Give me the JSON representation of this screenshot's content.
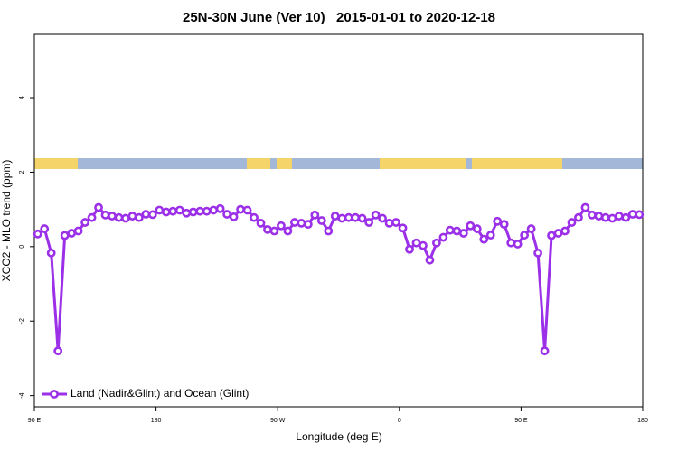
{
  "chart_data": {
    "type": "line",
    "title": "25N-30N June (Ver 10)   2015-01-01 to 2020-12-18",
    "xlabel": "Longitude (deg E)",
    "ylabel": "XCO2 - MLO trend (ppm)",
    "xlim": [
      90,
      540
    ],
    "xticks": [
      {
        "value": 90,
        "label": "90 E"
      },
      180,
      {
        "value": 270,
        "label": "90 W"
      },
      {
        "value": 360,
        "label": "0"
      },
      {
        "value": 450,
        "label": "90 E"
      },
      {
        "value": 540,
        "label": "180"
      }
    ],
    "ylim": [
      -4.3,
      5.7
    ],
    "yticks": [
      -4,
      -2,
      0,
      2,
      4
    ],
    "legend": "bottom-left",
    "x": [
      92.5,
      97.5,
      102.5,
      107.5,
      112.5,
      117.5,
      122.5,
      127.5,
      132.5,
      137.5,
      142.5,
      147.5,
      152.5,
      157.5,
      162.5,
      167.5,
      172.5,
      177.5,
      182.5,
      187.5,
      192.5,
      197.5,
      202.5,
      207.5,
      212.5,
      217.5,
      222.5,
      227.5,
      232.5,
      237.5,
      242.5,
      247.5,
      252.5,
      257.5,
      262.5,
      267.5,
      272.5,
      277.5,
      282.5,
      287.5,
      292.5,
      297.5,
      302.5,
      307.5,
      312.5,
      317.5,
      322.5,
      327.5,
      332.5,
      337.5,
      342.5,
      347.5,
      352.5,
      357.5,
      362.5,
      367.5,
      372.5,
      377.5,
      382.5,
      387.5,
      392.5,
      397.5,
      402.5,
      407.5,
      412.5,
      417.5,
      422.5,
      427.5,
      432.5,
      437.5,
      442.5,
      447.5,
      452.5,
      457.5,
      462.5,
      467.5,
      472.5,
      477.5,
      482.5,
      487.5,
      492.5,
      497.5,
      502.5,
      507.5,
      512.5,
      517.5,
      522.5,
      527.5,
      532.5,
      537.5
    ],
    "series": [
      {
        "name": "Land (Nadir&Glint) and Ocean (Glint)",
        "color": "#9b30e8",
        "values": [
          0.34,
          0.48,
          -0.17,
          -2.8,
          0.3,
          0.36,
          0.42,
          0.65,
          0.78,
          1.05,
          0.85,
          0.82,
          0.78,
          0.76,
          0.82,
          0.78,
          0.87,
          0.86,
          0.98,
          0.93,
          0.95,
          0.98,
          0.9,
          0.93,
          0.95,
          0.95,
          0.98,
          1.02,
          0.87,
          0.8,
          1.0,
          0.98,
          0.78,
          0.63,
          0.46,
          0.42,
          0.56,
          0.42,
          0.65,
          0.63,
          0.6,
          0.85,
          0.7,
          0.42,
          0.82,
          0.76,
          0.78,
          0.78,
          0.76,
          0.65,
          0.85,
          0.76,
          0.63,
          0.65,
          0.5,
          -0.07,
          0.1,
          0.03,
          -0.36,
          0.1,
          0.25,
          0.44,
          0.42,
          0.36,
          0.56,
          0.48,
          0.2,
          0.31,
          0.68,
          0.6,
          0.1,
          0.07,
          0.31,
          0.48,
          -0.17,
          -2.8,
          0.3,
          0.36,
          0.42,
          0.65,
          0.78,
          1.05,
          0.85,
          0.82,
          0.78,
          0.76,
          0.82,
          0.78,
          0.87,
          0.86
        ]
      }
    ]
  }
}
